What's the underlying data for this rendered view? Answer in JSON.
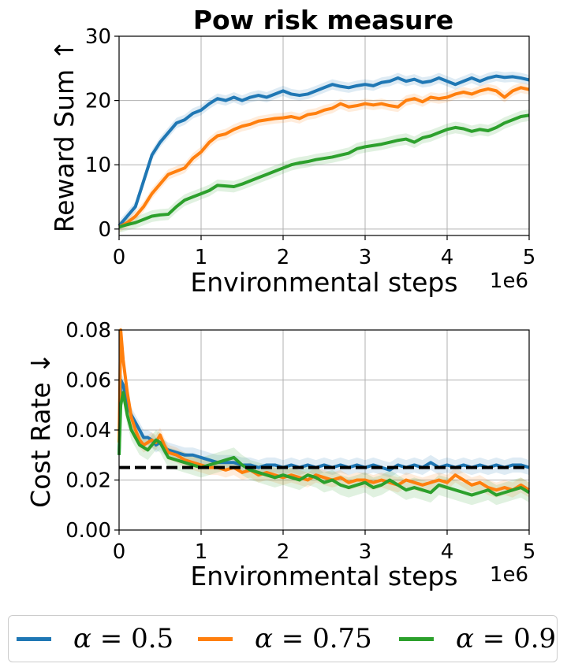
{
  "figure_title": "Pow risk measure",
  "legend": [
    {
      "symbol": "α",
      "value": "0.5",
      "color": "#1f77b4"
    },
    {
      "symbol": "α",
      "value": "0.75",
      "color": "#ff7f0e"
    },
    {
      "symbol": "α",
      "value": "0.9",
      "color": "#2ca02c"
    }
  ],
  "chart_data": [
    {
      "type": "line",
      "title": "Pow risk measure",
      "xlabel": "Environmental steps",
      "ylabel": "Reward Sum ↑",
      "x_multiplier_label": "1e6",
      "xlim": [
        0,
        5
      ],
      "ylim": [
        -1,
        30
      ],
      "xticks": [
        0,
        1,
        2,
        3,
        4,
        5
      ],
      "xtick_labels": [
        "0",
        "1",
        "2",
        "3",
        "4",
        "5"
      ],
      "yticks": [
        0,
        10,
        20,
        30
      ],
      "ytick_labels": [
        "0",
        "10",
        "20",
        "30"
      ],
      "grid": true,
      "x": [
        0,
        0.1,
        0.2,
        0.3,
        0.4,
        0.5,
        0.6,
        0.7,
        0.8,
        0.9,
        1.0,
        1.1,
        1.2,
        1.3,
        1.4,
        1.5,
        1.6,
        1.7,
        1.8,
        1.9,
        2.0,
        2.1,
        2.2,
        2.3,
        2.4,
        2.5,
        2.6,
        2.7,
        2.8,
        2.9,
        3.0,
        3.1,
        3.2,
        3.3,
        3.4,
        3.5,
        3.6,
        3.7,
        3.8,
        3.9,
        4.0,
        4.1,
        4.2,
        4.3,
        4.4,
        4.5,
        4.6,
        4.7,
        4.8,
        4.9,
        5.0
      ],
      "series": [
        {
          "name": "α = 0.5",
          "color": "#1f77b4",
          "values": [
            0.5,
            2.0,
            3.5,
            7.5,
            11.5,
            13.5,
            15.0,
            16.5,
            17.0,
            18.0,
            18.5,
            19.5,
            20.3,
            20.0,
            20.5,
            20.0,
            20.5,
            20.8,
            20.5,
            21.0,
            21.5,
            21.0,
            20.8,
            21.0,
            21.5,
            22.0,
            22.5,
            22.2,
            22.0,
            22.3,
            22.5,
            22.3,
            22.8,
            23.0,
            23.5,
            23.0,
            23.3,
            22.8,
            23.0,
            23.5,
            23.0,
            22.5,
            23.0,
            23.5,
            23.0,
            23.5,
            23.8,
            23.6,
            23.7,
            23.5,
            23.2
          ],
          "band": 0.8
        },
        {
          "name": "α = 0.75",
          "color": "#ff7f0e",
          "values": [
            0.3,
            1.0,
            2.0,
            3.5,
            5.5,
            7.0,
            8.5,
            9.0,
            9.5,
            11.0,
            12.0,
            13.5,
            14.5,
            14.8,
            15.5,
            16.0,
            16.3,
            16.8,
            17.0,
            17.2,
            17.3,
            17.5,
            17.2,
            17.8,
            18.0,
            18.5,
            18.8,
            19.5,
            19.0,
            19.2,
            19.5,
            19.3,
            19.5,
            19.2,
            19.0,
            20.0,
            20.3,
            19.8,
            20.5,
            20.3,
            20.5,
            21.0,
            21.3,
            21.0,
            21.5,
            21.8,
            21.5,
            20.5,
            21.5,
            22.0,
            21.7
          ],
          "band": 0.8
        },
        {
          "name": "α = 0.9",
          "color": "#2ca02c",
          "values": [
            0.3,
            0.7,
            1.0,
            1.5,
            2.0,
            2.2,
            2.3,
            3.5,
            4.5,
            5.0,
            5.5,
            6.0,
            6.8,
            6.7,
            6.6,
            7.0,
            7.5,
            8.0,
            8.5,
            9.0,
            9.5,
            10.0,
            10.3,
            10.5,
            10.8,
            11.0,
            11.2,
            11.5,
            11.8,
            12.5,
            12.8,
            13.0,
            13.2,
            13.5,
            13.8,
            14.0,
            13.5,
            14.2,
            14.5,
            15.0,
            15.5,
            15.8,
            15.6,
            15.2,
            15.5,
            15.3,
            15.8,
            16.5,
            17.0,
            17.5,
            17.7
          ],
          "band": 0.9
        }
      ]
    },
    {
      "type": "line",
      "xlabel": "Environmental steps",
      "ylabel": "Cost Rate ↓",
      "x_multiplier_label": "1e6",
      "xlim": [
        0,
        5
      ],
      "ylim": [
        0,
        0.08
      ],
      "xticks": [
        0,
        1,
        2,
        3,
        4,
        5
      ],
      "xtick_labels": [
        "0",
        "1",
        "2",
        "3",
        "4",
        "5"
      ],
      "yticks": [
        0,
        0.02,
        0.04,
        0.06,
        0.08
      ],
      "ytick_labels": [
        "0.00",
        "0.02",
        "0.04",
        "0.06",
        "0.08"
      ],
      "grid": true,
      "threshold": 0.025,
      "x": [
        0,
        0.02,
        0.05,
        0.1,
        0.15,
        0.2,
        0.25,
        0.3,
        0.35,
        0.4,
        0.45,
        0.5,
        0.55,
        0.6,
        0.7,
        0.8,
        0.9,
        1.0,
        1.1,
        1.2,
        1.3,
        1.4,
        1.5,
        1.6,
        1.7,
        1.8,
        1.9,
        2.0,
        2.1,
        2.2,
        2.3,
        2.4,
        2.5,
        2.6,
        2.7,
        2.8,
        2.9,
        3.0,
        3.1,
        3.2,
        3.3,
        3.4,
        3.5,
        3.6,
        3.7,
        3.8,
        3.9,
        4.0,
        4.1,
        4.2,
        4.3,
        4.4,
        4.5,
        4.6,
        4.7,
        4.8,
        4.9,
        5.0
      ],
      "series": [
        {
          "name": "α = 0.5",
          "color": "#1f77b4",
          "values": [
            0.03,
            0.06,
            0.058,
            0.05,
            0.046,
            0.043,
            0.04,
            0.037,
            0.037,
            0.036,
            0.034,
            0.035,
            0.033,
            0.032,
            0.031,
            0.03,
            0.03,
            0.029,
            0.028,
            0.027,
            0.027,
            0.027,
            0.026,
            0.026,
            0.025,
            0.026,
            0.026,
            0.025,
            0.026,
            0.025,
            0.026,
            0.025,
            0.026,
            0.025,
            0.026,
            0.025,
            0.026,
            0.025,
            0.026,
            0.025,
            0.024,
            0.026,
            0.025,
            0.026,
            0.025,
            0.027,
            0.025,
            0.026,
            0.025,
            0.026,
            0.025,
            0.026,
            0.025,
            0.026,
            0.025,
            0.026,
            0.026,
            0.025
          ],
          "band": 0.003
        },
        {
          "name": "α = 0.75",
          "color": "#ff7f0e",
          "values": [
            0.035,
            0.08,
            0.068,
            0.055,
            0.045,
            0.04,
            0.036,
            0.034,
            0.035,
            0.036,
            0.035,
            0.038,
            0.034,
            0.031,
            0.03,
            0.028,
            0.027,
            0.026,
            0.025,
            0.025,
            0.024,
            0.025,
            0.023,
            0.024,
            0.022,
            0.023,
            0.022,
            0.021,
            0.022,
            0.021,
            0.02,
            0.022,
            0.021,
            0.02,
            0.021,
            0.019,
            0.02,
            0.02,
            0.019,
            0.02,
            0.019,
            0.018,
            0.02,
            0.019,
            0.018,
            0.019,
            0.02,
            0.019,
            0.022,
            0.02,
            0.018,
            0.019,
            0.017,
            0.016,
            0.017,
            0.016,
            0.018,
            0.016
          ],
          "band": 0.003
        },
        {
          "name": "α = 0.9",
          "color": "#2ca02c",
          "values": [
            0.03,
            0.05,
            0.055,
            0.046,
            0.04,
            0.037,
            0.034,
            0.033,
            0.032,
            0.034,
            0.036,
            0.035,
            0.032,
            0.029,
            0.028,
            0.027,
            0.026,
            0.025,
            0.026,
            0.027,
            0.028,
            0.029,
            0.026,
            0.024,
            0.023,
            0.022,
            0.021,
            0.022,
            0.021,
            0.02,
            0.022,
            0.021,
            0.019,
            0.02,
            0.018,
            0.017,
            0.018,
            0.019,
            0.017,
            0.018,
            0.02,
            0.018,
            0.016,
            0.017,
            0.016,
            0.015,
            0.018,
            0.017,
            0.016,
            0.015,
            0.014,
            0.015,
            0.016,
            0.014,
            0.015,
            0.016,
            0.017,
            0.015
          ],
          "band": 0.004
        }
      ]
    }
  ]
}
